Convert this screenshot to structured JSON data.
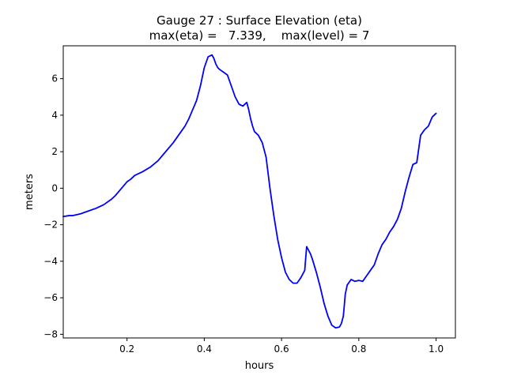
{
  "chart_data": {
    "type": "line",
    "title": "Gauge 27 : Surface Elevation (eta)",
    "subtitle": "max(eta) =   7.339,    max(level) = 7",
    "xlabel": "hours",
    "ylabel": "meters",
    "xlim": [
      0.035,
      1.05
    ],
    "ylim": [
      -8.2,
      7.8
    ],
    "x_ticks": [
      0.2,
      0.4,
      0.6,
      0.8,
      1.0
    ],
    "x_tick_labels": [
      "0.2",
      "0.4",
      "0.6",
      "0.8",
      "1.0"
    ],
    "y_ticks": [
      -8,
      -6,
      -4,
      -2,
      0,
      2,
      4,
      6
    ],
    "y_tick_labels": [
      "−8",
      "−6",
      "−4",
      "−2",
      "0",
      "2",
      "4",
      "6"
    ],
    "grid": false,
    "series": [
      {
        "name": "eta",
        "color": "#0000ff",
        "x": [
          0.035,
          0.05,
          0.06,
          0.07,
          0.08,
          0.1,
          0.12,
          0.14,
          0.16,
          0.17,
          0.18,
          0.19,
          0.2,
          0.21,
          0.22,
          0.24,
          0.26,
          0.28,
          0.3,
          0.32,
          0.34,
          0.35,
          0.36,
          0.37,
          0.38,
          0.39,
          0.4,
          0.41,
          0.42,
          0.425,
          0.43,
          0.435,
          0.44,
          0.45,
          0.46,
          0.47,
          0.48,
          0.49,
          0.5,
          0.51,
          0.515,
          0.52,
          0.525,
          0.53,
          0.54,
          0.55,
          0.56,
          0.57,
          0.58,
          0.59,
          0.6,
          0.61,
          0.62,
          0.63,
          0.64,
          0.65,
          0.66,
          0.665,
          0.67,
          0.675,
          0.68,
          0.69,
          0.7,
          0.71,
          0.72,
          0.73,
          0.74,
          0.75,
          0.755,
          0.76,
          0.765,
          0.77,
          0.78,
          0.79,
          0.8,
          0.81,
          0.82,
          0.83,
          0.84,
          0.85,
          0.86,
          0.87,
          0.88,
          0.89,
          0.9,
          0.91,
          0.92,
          0.93,
          0.94,
          0.95,
          0.96,
          0.97,
          0.98,
          0.99,
          1.0
        ],
        "y": [
          -1.55,
          -1.5,
          -1.5,
          -1.45,
          -1.4,
          -1.25,
          -1.1,
          -0.9,
          -0.6,
          -0.4,
          -0.15,
          0.1,
          0.35,
          0.5,
          0.7,
          0.9,
          1.15,
          1.5,
          2.0,
          2.5,
          3.1,
          3.4,
          3.8,
          4.3,
          4.8,
          5.6,
          6.6,
          7.2,
          7.3,
          7.1,
          6.8,
          6.6,
          6.5,
          6.35,
          6.2,
          5.6,
          5.0,
          4.6,
          4.5,
          4.7,
          4.3,
          3.8,
          3.4,
          3.1,
          2.9,
          2.5,
          1.7,
          0.0,
          -1.5,
          -2.8,
          -3.8,
          -4.6,
          -5.0,
          -5.2,
          -5.2,
          -4.9,
          -4.5,
          -3.2,
          -3.4,
          -3.6,
          -3.9,
          -4.6,
          -5.4,
          -6.3,
          -7.0,
          -7.5,
          -7.65,
          -7.6,
          -7.4,
          -7.0,
          -5.8,
          -5.3,
          -5.0,
          -5.1,
          -5.05,
          -5.1,
          -4.8,
          -4.5,
          -4.2,
          -3.6,
          -3.1,
          -2.8,
          -2.4,
          -2.1,
          -1.7,
          -1.1,
          -0.2,
          0.6,
          1.3,
          1.4,
          2.9,
          3.2,
          3.4,
          3.9,
          4.1
        ]
      }
    ]
  }
}
